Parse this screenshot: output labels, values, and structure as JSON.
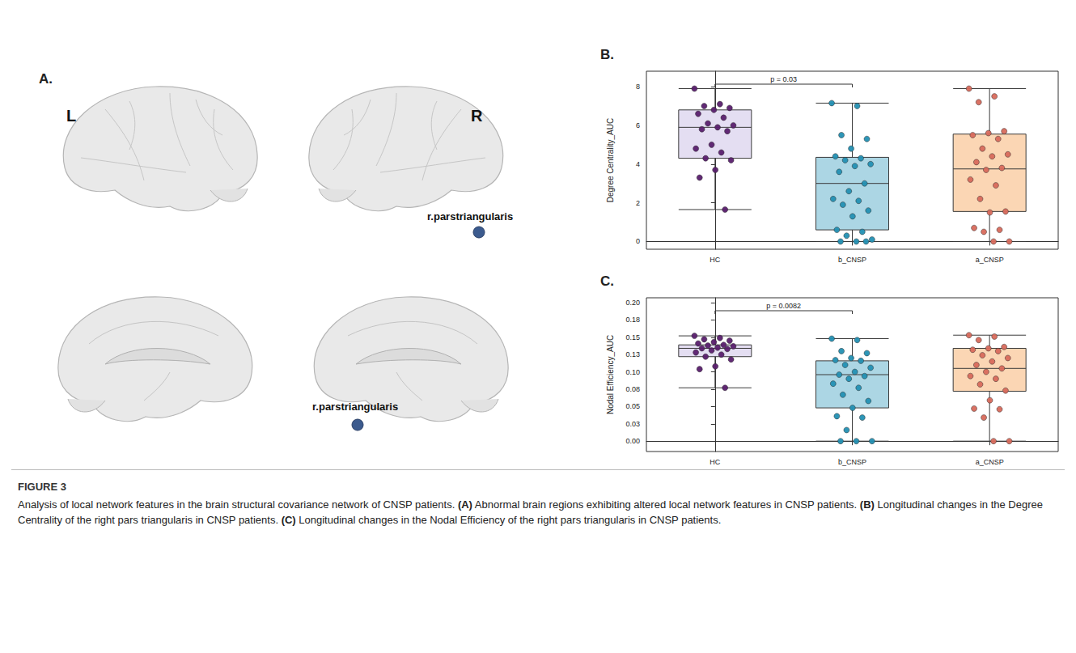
{
  "figure_label": "FIGURE 3",
  "caption": {
    "intro": "Analysis of local network features in the brain structural covariance network of CNSP patients.",
    "parts": [
      {
        "label": "(A)",
        "text": "Abnormal brain regions exhibiting altered local network features in CNSP patients."
      },
      {
        "label": "(B)",
        "text": "Longitudinal changes in the Degree Centrality of the right pars triangularis in CNSP patients."
      },
      {
        "label": "(C)",
        "text": "Longitudinal changes in the Nodal Efficiency of the right pars triangularis in CNSP patients."
      }
    ]
  },
  "panel_a": {
    "letter": "A.",
    "hemisphere_labels": [
      "L",
      "R"
    ],
    "region_labels": [
      "r.parstriangularis",
      "r.parstriangularis"
    ]
  },
  "chart_data": [
    {
      "letter": "B.",
      "type": "boxplot",
      "y_label": "Degree Centrality_AUC",
      "categories": [
        "HC",
        "b_CNSP",
        "a_CNSP"
      ],
      "colors": [
        "#e4def2",
        "#acd6e4",
        "#fbd6b4"
      ],
      "point_colors": [
        "#5a1f6e",
        "#2390b3",
        "#d86a5c"
      ],
      "boxes": [
        {
          "min": 1.65,
          "q1": 4.3,
          "median": 5.9,
          "q3": 6.8,
          "max": 7.9
        },
        {
          "min": 0,
          "q1": 0.6,
          "median": 3.0,
          "q3": 4.35,
          "max": 7.15
        },
        {
          "min": 0,
          "q1": 1.55,
          "median": 3.75,
          "q3": 5.55,
          "max": 7.9
        }
      ],
      "points": [
        [
          7.9,
          7.1,
          7.0,
          6.9,
          6.8,
          6.6,
          6.4,
          6.1,
          6.0,
          5.9,
          5.8,
          5.7,
          5.0,
          4.8,
          4.6,
          4.3,
          4.2,
          3.7,
          3.3,
          1.65
        ],
        [
          7.15,
          7.0,
          5.5,
          5.3,
          4.8,
          4.4,
          4.3,
          4.2,
          4.0,
          3.9,
          3.6,
          3.0,
          2.6,
          2.2,
          2.1,
          1.9,
          1.6,
          1.3,
          0.6,
          0.5,
          0.3,
          0.1,
          0,
          0,
          0
        ],
        [
          7.9,
          7.5,
          7.2,
          5.7,
          5.6,
          5.5,
          5.3,
          4.8,
          4.5,
          4.4,
          4.1,
          3.8,
          3.7,
          3.2,
          2.9,
          2.2,
          1.55,
          1.5,
          0.7,
          0.6,
          0.5,
          0,
          0
        ]
      ],
      "annotations": [
        {
          "text": "p = 0.03",
          "from": "HC",
          "to": "b_CNSP"
        }
      ],
      "ylim": [
        -0.4,
        8.8
      ],
      "yticks": [
        0,
        2,
        4,
        6,
        8
      ],
      "grid": false
    },
    {
      "letter": "C.",
      "type": "boxplot",
      "y_label": "Nodal Efficiency_AUC",
      "categories": [
        "HC",
        "b_CNSP",
        "a_CNSP"
      ],
      "colors": [
        "#e4def2",
        "#acd6e4",
        "#fbd6b4"
      ],
      "point_colors": [
        "#5a1f6e",
        "#2390b3",
        "#d86a5c"
      ],
      "boxes": [
        {
          "min": 0.077,
          "q1": 0.122,
          "median": 0.134,
          "q3": 0.139,
          "max": 0.152
        },
        {
          "min": 0,
          "q1": 0.048,
          "median": 0.096,
          "q3": 0.116,
          "max": 0.148
        },
        {
          "min": 0,
          "q1": 0.072,
          "median": 0.105,
          "q3": 0.134,
          "max": 0.153
        }
      ],
      "points": [
        [
          0.152,
          0.149,
          0.147,
          0.145,
          0.143,
          0.141,
          0.139,
          0.138,
          0.137,
          0.135,
          0.134,
          0.133,
          0.131,
          0.128,
          0.125,
          0.122,
          0.118,
          0.108,
          0.104,
          0.077
        ],
        [
          0.148,
          0.146,
          0.13,
          0.127,
          0.12,
          0.117,
          0.116,
          0.11,
          0.106,
          0.1,
          0.096,
          0.094,
          0.09,
          0.083,
          0.077,
          0.067,
          0.058,
          0.048,
          0.036,
          0.034,
          0.016,
          0,
          0,
          0
        ],
        [
          0.153,
          0.151,
          0.146,
          0.136,
          0.134,
          0.132,
          0.13,
          0.124,
          0.12,
          0.115,
          0.11,
          0.105,
          0.1,
          0.094,
          0.09,
          0.082,
          0.073,
          0.059,
          0.047,
          0.046,
          0.034,
          0,
          0
        ]
      ],
      "annotations": [
        {
          "text": "p = 0.0082",
          "from": "HC",
          "to": "b_CNSP"
        }
      ],
      "ylim": [
        -0.015,
        0.207
      ],
      "yticks": [
        {
          "value": 0,
          "label": "0.00"
        },
        {
          "value": 0.025,
          "label": "0.03"
        },
        {
          "value": 0.05,
          "label": "0.05"
        },
        {
          "value": 0.075,
          "label": "0.08"
        },
        {
          "value": 0.1,
          "label": "0.10"
        },
        {
          "value": 0.125,
          "label": "0.13"
        },
        {
          "value": 0.15,
          "label": "0.15"
        },
        {
          "value": 0.175,
          "label": "0.18"
        },
        {
          "value": 0.2,
          "label": "0.20"
        }
      ],
      "grid": false
    }
  ]
}
